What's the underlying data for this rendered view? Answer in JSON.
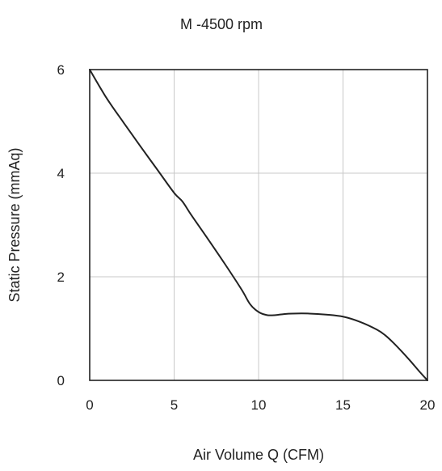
{
  "chart_data": {
    "type": "line",
    "title": "M -4500 rpm",
    "xlabel": "Air Volume Q (CFM)",
    "ylabel": "Static Pressure (mmAq)",
    "xlim": [
      0,
      20
    ],
    "ylim": [
      0,
      6
    ],
    "xticks": [
      0,
      5,
      10,
      15,
      20
    ],
    "yticks": [
      0,
      2,
      4,
      6
    ],
    "grid": true,
    "series": [
      {
        "x": [
          0,
          1,
          2,
          3,
          4,
          5,
          5.5,
          6,
          7,
          8,
          9,
          9.5,
          10,
          10.5,
          11,
          11.5,
          12,
          13,
          14,
          15,
          16,
          17,
          17.5,
          18,
          18.5,
          19,
          19.5,
          20
        ],
        "y": [
          6.0,
          5.45,
          4.98,
          4.52,
          4.07,
          3.62,
          3.45,
          3.2,
          2.73,
          2.25,
          1.75,
          1.47,
          1.32,
          1.26,
          1.26,
          1.28,
          1.29,
          1.29,
          1.27,
          1.23,
          1.13,
          0.98,
          0.87,
          0.72,
          0.55,
          0.37,
          0.18,
          0.0
        ]
      }
    ]
  }
}
